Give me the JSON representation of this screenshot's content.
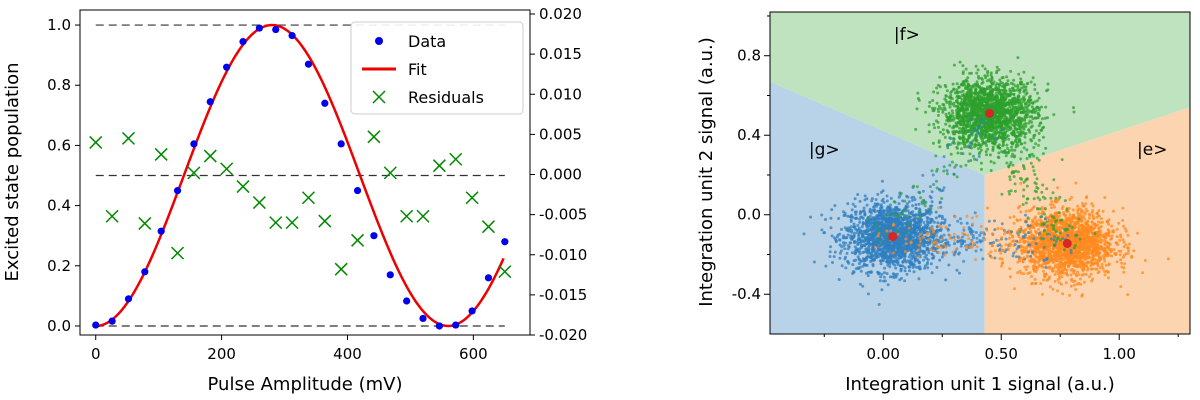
{
  "chart_data": [
    {
      "type": "scatter",
      "xlabel": "Pulse Amplitude (mV)",
      "ylabel": "Excited state population",
      "xlim": [
        -25,
        690
      ],
      "ylim": [
        -0.03,
        1.05
      ],
      "y2lim": [
        -0.02,
        0.0205
      ],
      "xticks": [
        0,
        200,
        400,
        600
      ],
      "xtick_labels": [
        "0",
        "200",
        "400",
        "600"
      ],
      "yticks": [
        0.0,
        0.2,
        0.4,
        0.6,
        0.8,
        1.0
      ],
      "ytick_labels": [
        "0.0",
        "0.2",
        "0.4",
        "0.6",
        "0.8",
        "1.0"
      ],
      "y2ticks": [
        -0.02,
        -0.015,
        -0.01,
        -0.005,
        0.0,
        0.005,
        0.01,
        0.015,
        0.02
      ],
      "y2tick_labels": [
        "-0.020",
        "-0.015",
        "-0.010",
        "-0.005",
        "0.000",
        "0.005",
        "0.010",
        "0.015",
        "0.020"
      ],
      "reference_lines_left_axis": [
        0.0,
        0.5,
        1.0
      ],
      "legend": {
        "placement": "top-right",
        "entries": [
          "Data",
          "Fit",
          "Residuals"
        ]
      },
      "series": [
        {
          "name": "Data",
          "axis": "left",
          "color": "#0000ee",
          "x": [
            0,
            26,
            52,
            78,
            104,
            130,
            156,
            182,
            208,
            234,
            260,
            286,
            312,
            338,
            364,
            390,
            416,
            442,
            468,
            494,
            520,
            546,
            572,
            598,
            624,
            650
          ],
          "y": [
            0.003,
            0.016,
            0.09,
            0.18,
            0.315,
            0.45,
            0.605,
            0.745,
            0.86,
            0.945,
            0.99,
            0.985,
            0.965,
            0.87,
            0.74,
            0.605,
            0.45,
            0.3,
            0.17,
            0.083,
            0.025,
            0.0,
            0.003,
            0.05,
            0.16,
            0.28
          ]
        },
        {
          "name": "Fit",
          "axis": "left",
          "color": "#ee0000",
          "model": {
            "amplitude": 0.5,
            "offset": 0.5,
            "period_mV": 560
          }
        },
        {
          "name": "Residuals",
          "axis": "right",
          "color": "#008800",
          "x": [
            0,
            26,
            52,
            78,
            104,
            130,
            156,
            182,
            208,
            234,
            260,
            286,
            312,
            338,
            364,
            390,
            416,
            442,
            468,
            494,
            520,
            546,
            572,
            598,
            624,
            650
          ],
          "y": [
            0.004,
            -0.0052,
            0.0045,
            -0.0061,
            0.0025,
            -0.0098,
            0.0002,
            0.0023,
            0.0007,
            -0.0015,
            -0.0035,
            -0.006,
            -0.006,
            -0.0029,
            -0.0058,
            -0.0118,
            -0.0082,
            0.0047,
            0.0002,
            -0.0052,
            -0.0052,
            0.0011,
            0.0019,
            -0.0029,
            -0.0065,
            -0.0121
          ]
        }
      ]
    },
    {
      "type": "scatter",
      "xlabel": "Integration unit 1 signal (a.u.)",
      "ylabel": "Integration unit 2 signal (a.u.)",
      "xlim": [
        -0.48,
        1.3
      ],
      "ylim": [
        -0.6,
        1.02
      ],
      "xticks": [
        0.0,
        0.5,
        1.0
      ],
      "xtick_labels": [
        "0.00",
        "0.50",
        "1.00"
      ],
      "xminor_ticks": [
        -0.25,
        0.25,
        0.75,
        1.25
      ],
      "yticks": [
        -0.4,
        0.0,
        0.4,
        0.8
      ],
      "ytick_labels": [
        "-0.4",
        "0.0",
        "0.4",
        "0.8"
      ],
      "yminor_ticks": [
        -0.2,
        0.2,
        0.6,
        1.0
      ],
      "region_colors": {
        "g": "#b8d2e8",
        "e": "#fcd5b0",
        "f": "#bfe2bf"
      },
      "boundary_point": [
        0.43,
        0.2
      ],
      "states": [
        {
          "label": "|g>",
          "center": [
            0.04,
            -0.11
          ],
          "spread": [
            0.1,
            0.085
          ],
          "color": "#2f7fbf",
          "count": 1800,
          "label_pos": [
            -0.25,
            0.3
          ]
        },
        {
          "label": "|e>",
          "center": [
            0.78,
            -0.145
          ],
          "spread": [
            0.1,
            0.085
          ],
          "color": "#ff8a1f",
          "count": 1800,
          "label_pos": [
            1.14,
            0.3
          ]
        },
        {
          "label": "|f>",
          "center": [
            0.45,
            0.51
          ],
          "spread": [
            0.1,
            0.085
          ],
          "color": "#2ca02c",
          "count": 1800,
          "label_pos": [
            0.1,
            0.88
          ]
        }
      ],
      "centroid_color": "#d62728"
    }
  ]
}
